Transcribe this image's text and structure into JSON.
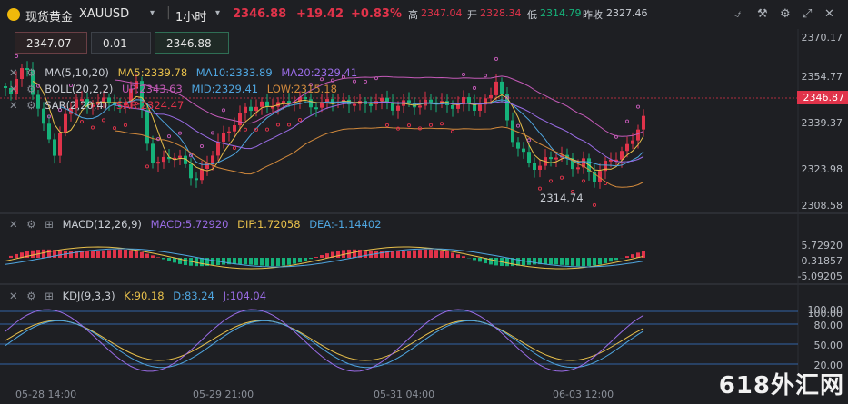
{
  "header": {
    "name": "现货黄金",
    "symbol": "XAUUSD",
    "interval": "1小时",
    "last": "2346.88",
    "change": "+19.42",
    "change_pct": "+0.83%",
    "high_label": "高",
    "high": "2347.04",
    "open_label": "开",
    "open": "2328.34",
    "low_label": "低",
    "low": "2314.79",
    "prev_label": "昨收",
    "prev": "2327.46"
  },
  "trade": {
    "sell": "2347.07",
    "size": "0.01",
    "buy": "2346.88"
  },
  "legends": {
    "ma": {
      "name": "MA(5,10,20)",
      "ma5": "MA5:2339.78",
      "ma10": "MA10:2333.89",
      "ma20": "MA20:2329.41"
    },
    "boll": {
      "name": "BOLL(20,2,2)",
      "up": "UP:2343.63",
      "mid": "MID:2329.41",
      "low": "LOW:2315.18"
    },
    "sar": {
      "name": "SAR(2,20,4)",
      "val": "SAR:2324.47"
    },
    "macd": {
      "name": "MACD(12,26,9)",
      "macd": "MACD:5.72920",
      "dif": "DIF:1.72058",
      "dea": "DEA:-1.14402"
    },
    "kdj": {
      "name": "KDJ(9,3,3)",
      "k": "K:90.18",
      "d": "D:83.24",
      "j": "J:104.04"
    }
  },
  "price_axis": [
    "2370.17",
    "2354.77",
    "2339.37",
    "2323.98",
    "2308.58"
  ],
  "current_price_tag": "2346.87",
  "low_marker": "2314.74",
  "macd_axis": [
    "5.72920",
    "0.31857",
    "-5.09205"
  ],
  "kdj_axis": [
    "100.00",
    "80.00",
    "50.00",
    "20.00"
  ],
  "kdj_axis_extra": "100.00",
  "dates": [
    "05-28 14:00",
    "05-29 21:00",
    "05-31 04:00",
    "06-03 12:00"
  ],
  "watermark": "618外汇网",
  "colors": {
    "up": "#e0334a",
    "down": "#15b27a",
    "ma5": "#e8c04b",
    "ma10": "#4fa6e0",
    "ma20": "#9a6ce6",
    "boll": "#c45ab8",
    "sar": "#e0334a"
  },
  "icons": [
    "indicator-icon",
    "close-icon",
    "settings-icon",
    "fullscreen-icon",
    "chevron-down-icon"
  ]
}
